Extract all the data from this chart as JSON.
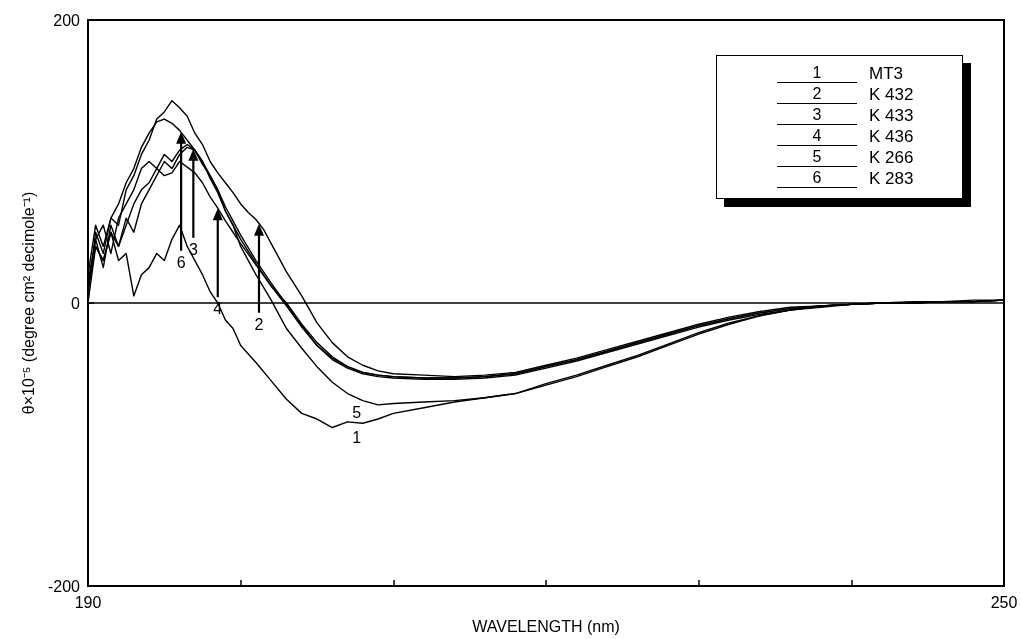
{
  "chart_data": {
    "type": "line",
    "xlabel": "WAVELENGTH (nm)",
    "ylabel": "θ×10⁻⁵ (degree cm² decimole⁻¹)",
    "xlim": [
      190,
      250
    ],
    "xticks": [
      190,
      {
        "value": 200,
        "label": null
      },
      {
        "value": 210,
        "label": null
      },
      {
        "value": 220,
        "label": null
      },
      {
        "value": 230,
        "label": null
      },
      {
        "value": 240,
        "label": null
      },
      250
    ],
    "ylim": [
      -200,
      200
    ],
    "yticks": [
      -200,
      0,
      200
    ],
    "grid": false,
    "legend": "top right",
    "marker": "none",
    "line_style": "solid",
    "ref_lines": [
      {
        "axis": "y",
        "value": 0,
        "color": "#000000"
      }
    ],
    "annotations": [
      {
        "text": "1",
        "x": 207.6,
        "y": -85
      },
      {
        "text": "2",
        "x": 201.2,
        "y": 56
      },
      {
        "text": "3",
        "x": 196.9,
        "y": 109
      },
      {
        "text": "4",
        "x": 198.5,
        "y": 67
      },
      {
        "text": "5",
        "x": 207.6,
        "y": -67
      },
      {
        "text": "6",
        "x": 196.1,
        "y": 121
      }
    ],
    "series": [
      {
        "name": "MT3",
        "color": "#000000",
        "x": [
          190,
          190.5,
          191,
          191.5,
          192,
          192.5,
          193,
          193.5,
          194,
          194.5,
          195,
          195.5,
          196,
          196.5,
          197,
          197.5,
          198,
          198.5,
          199,
          199.5,
          200,
          201,
          202,
          203,
          204,
          205,
          206,
          207,
          208,
          209,
          210,
          212,
          214,
          216,
          218,
          220,
          222,
          224,
          226,
          228,
          230,
          232,
          234,
          236,
          238,
          240,
          242,
          244,
          246,
          248,
          250
        ],
        "values": [
          0,
          40,
          30,
          50,
          30,
          35,
          5,
          20,
          25,
          35,
          30,
          45,
          55,
          40,
          30,
          20,
          8,
          0,
          -12,
          -18,
          -30,
          -42,
          -55,
          -68,
          -78,
          -82,
          -88,
          -84,
          -85,
          -82,
          -78,
          -74,
          -70,
          -67,
          -64,
          -58,
          -52,
          -45,
          -38,
          -30,
          -22,
          -15,
          -9,
          -5,
          -2,
          -1,
          0,
          1,
          1,
          2,
          2
        ]
      },
      {
        "name": "K 432",
        "color": "#000000",
        "x": [
          190,
          190.5,
          191,
          191.5,
          192,
          192.5,
          193,
          193.5,
          194,
          194.5,
          195,
          195.5,
          196,
          196.5,
          197,
          197.5,
          198,
          198.5,
          199,
          199.5,
          200,
          200.5,
          201,
          201.5,
          202,
          203,
          204,
          205,
          206,
          207,
          208,
          209,
          210,
          212,
          214,
          216,
          218,
          220,
          222,
          224,
          226,
          228,
          230,
          232,
          234,
          236,
          238,
          240,
          242,
          244,
          246,
          248,
          250
        ],
        "values": [
          5,
          50,
          35,
          60,
          55,
          80,
          90,
          105,
          115,
          130,
          135,
          143,
          138,
          132,
          120,
          112,
          100,
          92,
          85,
          78,
          70,
          64,
          59,
          52,
          42,
          22,
          5,
          -14,
          -28,
          -38,
          -44,
          -48,
          -50,
          -51,
          -52,
          -51,
          -49,
          -44,
          -39,
          -33,
          -27,
          -21,
          -15,
          -10,
          -6,
          -3,
          -2,
          -1,
          0,
          0,
          1,
          1,
          2
        ]
      },
      {
        "name": "K 433",
        "color": "#000000",
        "x": [
          190,
          190.5,
          191,
          191.5,
          192,
          192.5,
          193,
          193.5,
          194,
          194.5,
          195,
          195.5,
          196,
          196.5,
          197,
          197.5,
          198,
          198.5,
          199,
          199.5,
          200,
          201,
          202,
          203,
          204,
          205,
          206,
          207,
          208,
          209,
          210,
          212,
          214,
          216,
          218,
          220,
          222,
          224,
          226,
          228,
          230,
          232,
          234,
          236,
          238,
          240,
          242,
          244,
          246,
          248,
          250
        ],
        "values": [
          15,
          45,
          55,
          35,
          60,
          70,
          80,
          95,
          100,
          95,
          105,
          100,
          108,
          112,
          108,
          98,
          90,
          80,
          68,
          58,
          48,
          30,
          14,
          -1,
          -16,
          -30,
          -40,
          -46,
          -50,
          -52,
          -53,
          -54,
          -54,
          -53,
          -51,
          -46,
          -41,
          -35,
          -29,
          -23,
          -17,
          -12,
          -8,
          -5,
          -3,
          -1,
          0,
          0,
          1,
          1,
          2
        ]
      },
      {
        "name": "K 436",
        "color": "#000000",
        "x": [
          190,
          190.5,
          191,
          191.5,
          192,
          192.5,
          193,
          193.5,
          194,
          194.5,
          195,
          195.5,
          196,
          196.5,
          197,
          197.5,
          198,
          198.5,
          199,
          199.5,
          200,
          201,
          202,
          203,
          204,
          205,
          206,
          207,
          208,
          209,
          210,
          212,
          214,
          216,
          218,
          220,
          222,
          224,
          226,
          228,
          230,
          232,
          234,
          236,
          238,
          240,
          242,
          244,
          246,
          248,
          250
        ],
        "values": [
          10,
          40,
          30,
          50,
          40,
          55,
          70,
          80,
          85,
          95,
          90,
          92,
          100,
          96,
          92,
          85,
          75,
          67,
          58,
          50,
          42,
          27,
          12,
          -2,
          -17,
          -30,
          -39,
          -45,
          -49,
          -51,
          -52,
          -53,
          -53,
          -52,
          -50,
          -45,
          -40,
          -34,
          -28,
          -22,
          -16,
          -11,
          -7,
          -4,
          -2,
          -1,
          0,
          0,
          1,
          1,
          2
        ]
      },
      {
        "name": "K 266",
        "color": "#000000",
        "x": [
          190,
          190.5,
          191,
          191.5,
          192,
          192.5,
          193,
          193.5,
          194,
          194.5,
          195,
          195.5,
          196,
          196.5,
          197,
          197.5,
          198,
          198.5,
          199,
          199.5,
          200,
          201,
          202,
          202.5,
          203,
          204,
          205,
          206,
          207,
          208,
          209,
          210,
          212,
          214,
          216,
          218,
          220,
          222,
          224,
          226,
          228,
          230,
          232,
          234,
          236,
          238,
          240,
          242,
          244,
          246,
          248,
          250
        ],
        "values": [
          10,
          45,
          25,
          55,
          40,
          60,
          50,
          70,
          80,
          90,
          100,
          95,
          105,
          110,
          108,
          100,
          90,
          80,
          65,
          55,
          40,
          20,
          2,
          -8,
          -18,
          -32,
          -45,
          -56,
          -64,
          -69,
          -72,
          -71,
          -70,
          -69,
          -67,
          -64,
          -57,
          -51,
          -44,
          -37,
          -29,
          -21,
          -14,
          -9,
          -5,
          -2,
          -1,
          0,
          0,
          1,
          1,
          2
        ]
      },
      {
        "name": "K 283",
        "color": "#000000",
        "x": [
          190,
          190.5,
          191,
          191.5,
          192,
          192.5,
          193,
          193.5,
          194,
          194.5,
          195,
          195.5,
          196,
          196.5,
          197,
          197.5,
          198,
          198.5,
          199,
          199.5,
          200,
          201,
          202,
          203,
          204,
          205,
          206,
          207,
          208,
          209,
          210,
          212,
          214,
          216,
          218,
          220,
          222,
          224,
          226,
          228,
          230,
          232,
          234,
          236,
          238,
          240,
          242,
          244,
          246,
          248,
          250
        ],
        "values": [
          20,
          55,
          40,
          60,
          70,
          85,
          95,
          110,
          120,
          128,
          130,
          127,
          122,
          115,
          108,
          100,
          88,
          78,
          65,
          55,
          45,
          28,
          12,
          0,
          -15,
          -28,
          -38,
          -45,
          -49,
          -51,
          -52,
          -53,
          -53,
          -52,
          -50,
          -45,
          -40,
          -34,
          -28,
          -22,
          -16,
          -11,
          -7,
          -4,
          -2,
          -1,
          0,
          0,
          1,
          1,
          2
        ]
      }
    ]
  }
}
